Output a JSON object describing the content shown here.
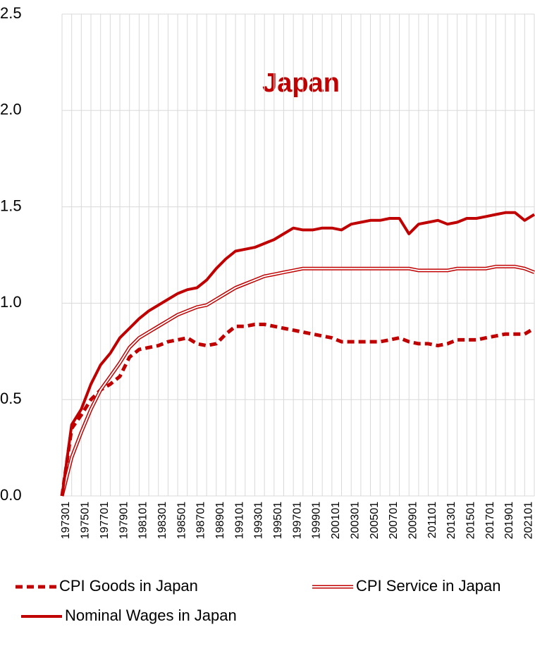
{
  "chart_data": {
    "type": "line",
    "title": "Japan",
    "categories": [
      "197301",
      null,
      "197501",
      null,
      "197701",
      null,
      "197901",
      null,
      "198101",
      null,
      "198301",
      null,
      "198501",
      null,
      "198701",
      null,
      "198901",
      null,
      "199101",
      null,
      "199301",
      null,
      "199501",
      null,
      "199701",
      null,
      "199901",
      null,
      "200101",
      null,
      "200301",
      null,
      "200501",
      null,
      "200701",
      null,
      "200901",
      null,
      "201101",
      null,
      "201301",
      null,
      "201501",
      null,
      "201701",
      null,
      "201901",
      null,
      "202101",
      null
    ],
    "series": [
      {
        "name": "CPI Goods in Japan",
        "color": "#c00000",
        "style": "dashed",
        "values": [
          0,
          0.35,
          0.42,
          0.5,
          0.55,
          0.58,
          0.62,
          0.72,
          0.76,
          0.77,
          0.78,
          0.8,
          0.81,
          0.82,
          0.79,
          0.78,
          0.79,
          0.84,
          0.88,
          0.88,
          0.89,
          0.89,
          0.88,
          0.87,
          0.86,
          0.85,
          0.84,
          0.83,
          0.82,
          0.8,
          0.8,
          0.8,
          0.8,
          0.8,
          0.81,
          0.82,
          0.8,
          0.79,
          0.79,
          0.78,
          0.79,
          0.81,
          0.81,
          0.81,
          0.82,
          0.83,
          0.84,
          0.84,
          0.84,
          0.87
        ]
      },
      {
        "name": "CPI Service in Japan",
        "color": "#c00000",
        "style": "double",
        "values": [
          0,
          0.2,
          0.33,
          0.45,
          0.55,
          0.62,
          0.69,
          0.77,
          0.82,
          0.85,
          0.88,
          0.91,
          0.94,
          0.96,
          0.98,
          0.99,
          1.02,
          1.05,
          1.08,
          1.1,
          1.12,
          1.14,
          1.15,
          1.16,
          1.17,
          1.18,
          1.18,
          1.18,
          1.18,
          1.18,
          1.18,
          1.18,
          1.18,
          1.18,
          1.18,
          1.18,
          1.18,
          1.17,
          1.17,
          1.17,
          1.17,
          1.18,
          1.18,
          1.18,
          1.18,
          1.19,
          1.19,
          1.19,
          1.18,
          1.16
        ]
      },
      {
        "name": "Nominal Wages in Japan",
        "color": "#c00000",
        "style": "solid",
        "values": [
          0,
          0.37,
          0.45,
          0.58,
          0.68,
          0.74,
          0.82,
          0.87,
          0.92,
          0.96,
          0.99,
          1.02,
          1.05,
          1.07,
          1.08,
          1.12,
          1.18,
          1.23,
          1.27,
          1.28,
          1.29,
          1.31,
          1.33,
          1.36,
          1.39,
          1.38,
          1.38,
          1.39,
          1.39,
          1.38,
          1.41,
          1.42,
          1.43,
          1.43,
          1.44,
          1.44,
          1.36,
          1.41,
          1.42,
          1.43,
          1.41,
          1.42,
          1.44,
          1.44,
          1.45,
          1.46,
          1.47,
          1.47,
          1.43,
          1.46
        ]
      }
    ],
    "ylim": [
      0,
      2.5
    ],
    "yticks": [
      {
        "value": 0,
        "label": "0.0"
      },
      0.5,
      {
        "value": 1,
        "label": "1.0"
      },
      1.5,
      {
        "value": 2,
        "label": "2.0"
      },
      2.5
    ],
    "grid": true
  }
}
